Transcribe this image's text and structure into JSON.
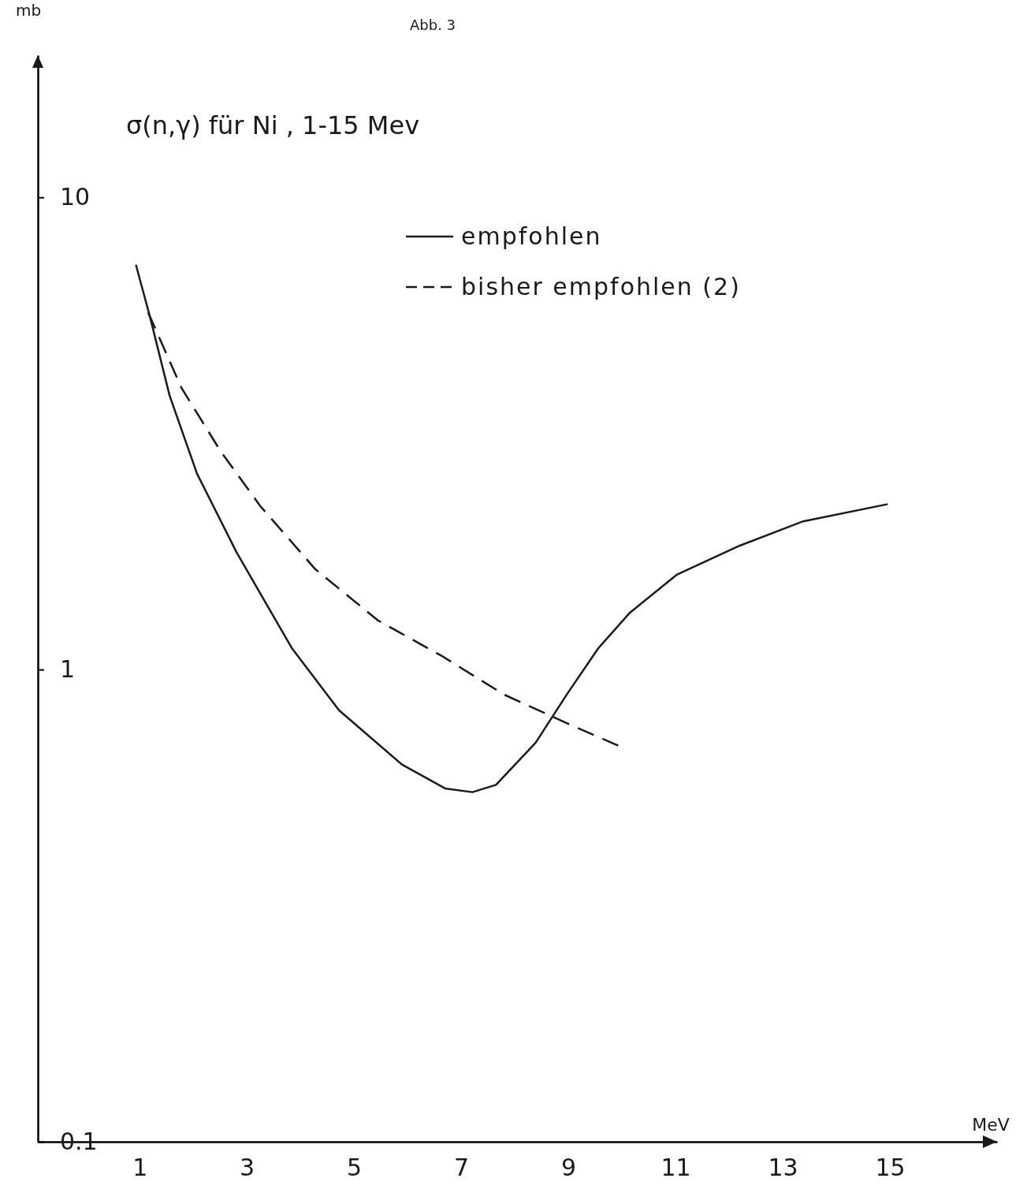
{
  "chart_data": {
    "type": "line",
    "title": "σ(n,γ) für Ni , 1-15 Mev",
    "annotations": [
      "Abb. 3"
    ],
    "xlabel": "MeV",
    "ylabel": "mb",
    "log": "y",
    "legend": "top",
    "marker": "none",
    "grid": false,
    "xlim": [
      -0.9,
      17
    ],
    "xticks": [
      1,
      3,
      5,
      7,
      9,
      11,
      13,
      15
    ],
    "ylim": [
      0.1,
      20
    ],
    "yticks": [
      0.1,
      1,
      10
    ],
    "series": [
      {
        "name": "empfohlen",
        "color": "#1a1a1a",
        "line_style": "solid",
        "x": [
          0.93,
          1.19,
          1.56,
          2.07,
          2.81,
          3.84,
          4.72,
          5.89,
          6.7,
          7.21,
          7.65,
          8.39,
          8.97,
          9.56,
          10.15,
          11.03,
          12.2,
          13.38,
          14.96
        ],
        "values": [
          7.2,
          5.6,
          3.8,
          2.6,
          1.77,
          1.11,
          0.82,
          0.63,
          0.56,
          0.55,
          0.57,
          0.7,
          0.885,
          1.11,
          1.32,
          1.59,
          1.83,
          2.06,
          2.24
        ]
      },
      {
        "name": "bisher empfohlen (2)",
        "color": "#1a1a1a",
        "line_style": "dashed",
        "x": [
          1.16,
          1.78,
          2.51,
          3.25,
          4.28,
          5.45,
          6.63,
          7.8,
          8.97,
          9.93
        ],
        "values": [
          5.7,
          3.95,
          2.9,
          2.22,
          1.63,
          1.27,
          1.07,
          0.885,
          0.77,
          0.69
        ]
      }
    ]
  }
}
